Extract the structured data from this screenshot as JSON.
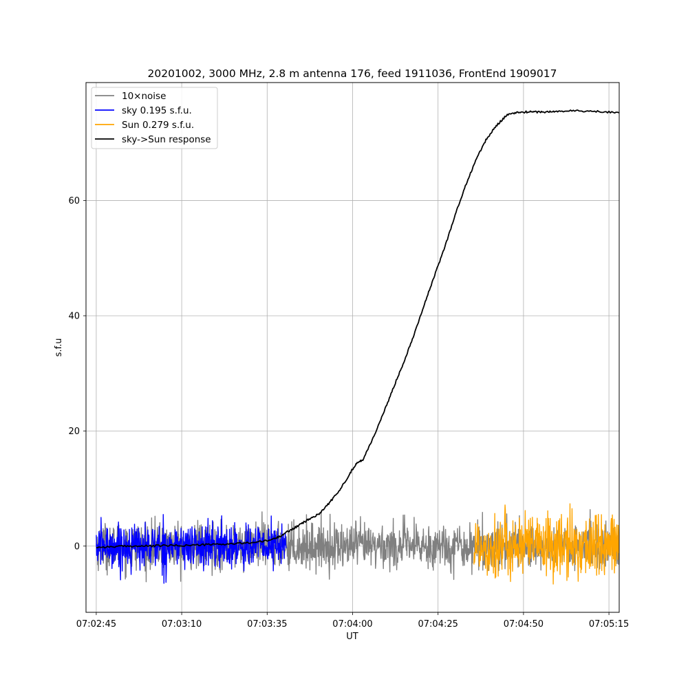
{
  "chart_data": {
    "type": "line",
    "title": "20201002, 3000 MHz, 2.8 m antenna 176, feed 1911036, FrontEnd 1909017",
    "xlabel": "UT",
    "ylabel": "s.f.u",
    "x_unit": "seconds UT",
    "xlim": [
      3762,
      3918
    ],
    "ylim": [
      -11.5,
      80.5
    ],
    "xticks": [
      {
        "value": 3765,
        "label": "07:02:45"
      },
      {
        "value": 3790,
        "label": "07:03:10"
      },
      {
        "value": 3815,
        "label": "07:03:35"
      },
      {
        "value": 3840,
        "label": "07:04:00"
      },
      {
        "value": 3865,
        "label": "07:04:25"
      },
      {
        "value": 3890,
        "label": "07:04:50"
      },
      {
        "value": 3915,
        "label": "07:05:15"
      }
    ],
    "yticks": [
      {
        "value": 0,
        "label": "0"
      },
      {
        "value": 20,
        "label": "20"
      },
      {
        "value": 40,
        "label": "40"
      },
      {
        "value": 60,
        "label": "60"
      }
    ],
    "grid": true,
    "legend_position": "top-left",
    "series": [
      {
        "name": "10×noise",
        "color": "#808080",
        "kind": "noise",
        "x_start": 3765,
        "x_end": 3930,
        "sigma": 2.0,
        "extreme": [
          -6.2,
          8.8
        ]
      },
      {
        "name": "sky 0.195 s.f.u.",
        "color": "#0000ff",
        "kind": "noise",
        "x_start": 3765,
        "x_end": 3820.5,
        "sigma": 1.95,
        "extreme": [
          -6.5,
          7.0
        ]
      },
      {
        "name": "Sun 0.279 s.f.u.",
        "color": "#ffa500",
        "kind": "noise",
        "x_start": 3875.5,
        "x_end": 3930.5,
        "sigma": 2.79,
        "extreme": [
          -7.5,
          8.8
        ]
      },
      {
        "name": "sky->Sun response",
        "color": "#000000",
        "kind": "line",
        "x": [
          3765,
          3770,
          3775,
          3780,
          3785,
          3790,
          3795,
          3800,
          3805,
          3810,
          3815,
          3818,
          3821,
          3824,
          3827,
          3830,
          3833,
          3836,
          3839,
          3841,
          3843,
          3846,
          3849,
          3852,
          3855,
          3858,
          3861,
          3864,
          3867,
          3870,
          3873,
          3876,
          3879,
          3882,
          3885,
          3888,
          3891,
          3894,
          3897,
          3900,
          3905,
          3910,
          3915,
          3920,
          3925,
          3930
        ],
        "y": [
          -0.2,
          -0.1,
          0.0,
          0.0,
          0.1,
          0.1,
          0.2,
          0.3,
          0.4,
          0.6,
          0.9,
          1.5,
          2.5,
          3.5,
          4.6,
          5.5,
          7.4,
          9.5,
          12.4,
          14.3,
          15.0,
          18.8,
          23.0,
          27.6,
          32.0,
          36.8,
          42.0,
          47.0,
          52.0,
          57.5,
          62.5,
          67.0,
          70.5,
          73.0,
          74.8,
          75.3,
          75.4,
          75.4,
          75.4,
          75.5,
          75.6,
          75.5,
          75.4,
          75.3,
          75.4,
          75.3
        ]
      }
    ]
  }
}
